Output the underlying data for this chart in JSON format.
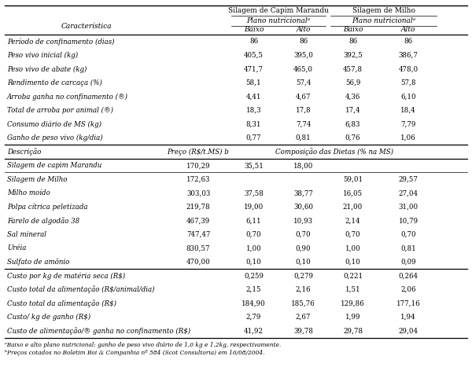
{
  "figsize": [
    6.0,
    4.86
  ],
  "dpi": 100,
  "section1_rows": [
    [
      "Período de confinamento (dias)",
      "",
      "86",
      "86",
      "86",
      "86"
    ],
    [
      "Peso vivo inicial (kg)",
      "",
      "405,5",
      "395,0",
      "392,5",
      "386,7"
    ],
    [
      "Peso vivo de abate (kg)",
      "",
      "471,7",
      "465,0",
      "457,8",
      "478,0"
    ],
    [
      "Rendimento de carcaça (%)",
      "",
      "58,1",
      "57,4",
      "56,9",
      "57,8"
    ],
    [
      "Arroba ganha no confinamento (®)",
      "",
      "4,41",
      "4,67",
      "4,36",
      "6,10"
    ],
    [
      "Total de arroba por animal (®)",
      "",
      "18,3",
      "17,8",
      "17,4",
      "18,4"
    ],
    [
      "Consumo diário de MS (kg)",
      "",
      "8,31",
      "7,74",
      "6,83",
      "7,79"
    ],
    [
      "Ganho de peso vivo (kg/dia)",
      "",
      "0,77",
      "0,81",
      "0,76",
      "1,06"
    ]
  ],
  "section2_rows": [
    [
      "Silagem de capim Marandu",
      "170,29",
      "35,51",
      "18,00",
      "",
      ""
    ],
    [
      "Silagem de Milho",
      "172,63",
      "",
      "",
      "59,01",
      "29,57"
    ],
    [
      "Milho moído",
      "303,03",
      "37,58",
      "38,77",
      "16,05",
      "27,04"
    ],
    [
      "Polpa cítrica peletizada",
      "219,78",
      "19,00",
      "30,60",
      "21,00",
      "31,00"
    ],
    [
      "Farelo de algodão 38",
      "467,39",
      "6,11",
      "10,93",
      "2,14",
      "10,79"
    ],
    [
      "Sal mineral",
      "747,47",
      "0,70",
      "0,70",
      "0,70",
      "0,70"
    ],
    [
      "Uréia",
      "830,57",
      "1,00",
      "0,90",
      "1,00",
      "0,81"
    ],
    [
      "Sulfato de amônio",
      "470,00",
      "0,10",
      "0,10",
      "0,10",
      "0,09"
    ]
  ],
  "section3_rows": [
    [
      "Custo por kg de matéria seca (R$)",
      "",
      "0,259",
      "0,279",
      "0,221",
      "0,264"
    ],
    [
      "Custo total da alimentação (R$/animal/dia)",
      "",
      "2,15",
      "2,16",
      "1,51",
      "2,06"
    ],
    [
      "Custo total da alimentação (R$)",
      "",
      "184,90",
      "185,76",
      "129,86",
      "177,16"
    ],
    [
      "Custo/ kg de ganho (R$)",
      "",
      "2,79",
      "2,67",
      "1,99",
      "1,94"
    ],
    [
      "Custo de alimentação/® ganha no confinamento (R$)",
      "",
      "41,92",
      "39,78",
      "29,78",
      "29,04"
    ]
  ],
  "footnote_a": "ᵃBaixo e alto plano nutricional: ganho de peso vivo diário de 1,0 kg e 1,2kg, respectivamente.",
  "footnote_b": "ᵇPreços cotados no Boletim Boi & Companhia nº 584 (Scot Consultoria) em 16/08/2004.",
  "bg_color": "#ffffff",
  "text_color": "#000000",
  "line_color": "#000000",
  "font_size": 6.2,
  "header_font_size": 6.5
}
